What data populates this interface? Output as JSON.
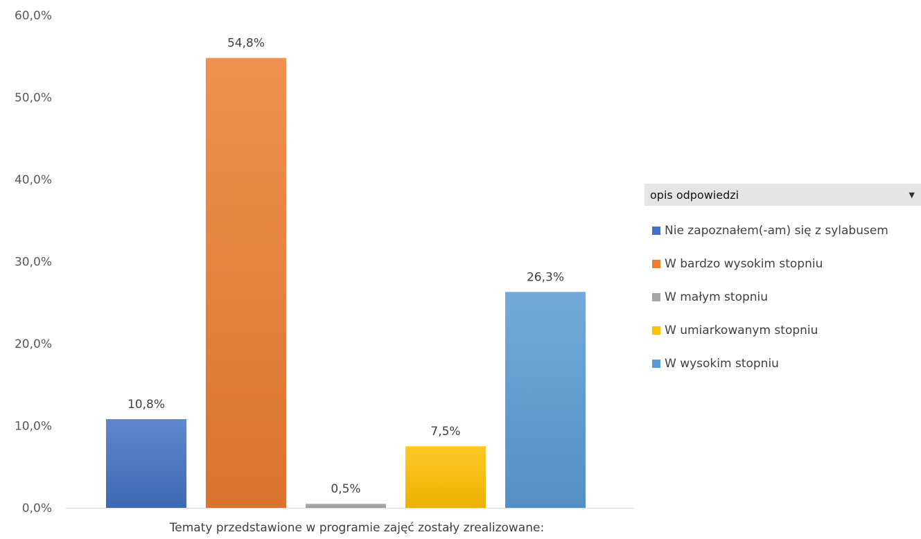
{
  "chart_data": {
    "type": "bar",
    "categories": [
      "Nie zapoznałem(-am) się z sylabusem",
      "W bardzo wysokim stopniu",
      "W małym stopniu",
      "W umiarkowanym stopniu",
      "W wysokim  stopniu"
    ],
    "values": [
      10.8,
      54.8,
      0.5,
      7.5,
      26.3
    ],
    "value_labels": [
      "10,8%",
      "54,8%",
      "0,5%",
      "7,5%",
      "26,3%"
    ],
    "colors": [
      "#4472c4",
      "#ed7d31",
      "#a5a5a5",
      "#ffc000",
      "#5b9bd5"
    ],
    "xlabel": "Tematy przedstawione w programie zajęć zostały zrealizowane:",
    "ylabel": "",
    "ylim": [
      0,
      60
    ],
    "yticks": [
      0,
      10,
      20,
      30,
      40,
      50,
      60
    ],
    "ytick_labels": [
      "0,0%",
      "10,0%",
      "20,0%",
      "30,0%",
      "40,0%",
      "50,0%",
      "60,0%"
    ],
    "grid": false,
    "legend_position": "right"
  },
  "legend": {
    "title": "opis odpowiedzi",
    "dropdown_icon": "dropdown-arrow-icon",
    "items": [
      {
        "label": "Nie zapoznałem(-am) się z sylabusem",
        "color": "#4472c4"
      },
      {
        "label": "W bardzo wysokim stopniu",
        "color": "#ed7d31"
      },
      {
        "label": "W małym stopniu",
        "color": "#a5a5a5"
      },
      {
        "label": "W umiarkowanym stopniu",
        "color": "#ffc000"
      },
      {
        "label": "W wysokim  stopniu",
        "color": "#5b9bd5"
      }
    ]
  }
}
